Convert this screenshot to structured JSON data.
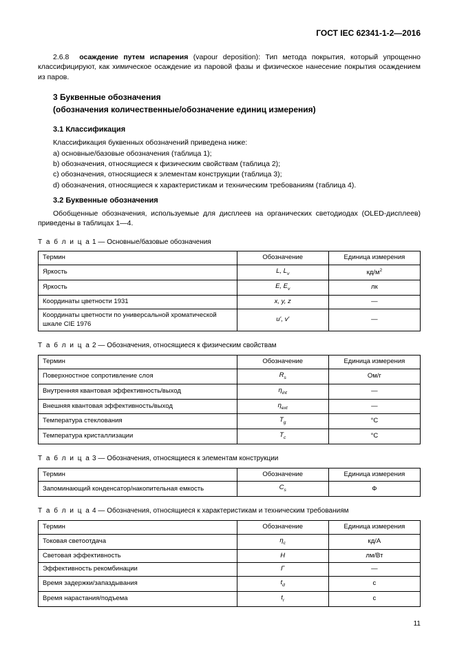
{
  "header": "ГОСТ IEC 62341-1-2—2016",
  "p268_num": "2.6.8",
  "p268_bold": "осаждение путем испарения",
  "p268_paren": "(vapour deposition):",
  "p268_rest": " Тип метода покрытия, который упрощенно классифицируют, как химическое осаждение из паровой фазы и физическое нанесение покрытия осаждением из паров.",
  "sec3_line1": "3  Буквенные обозначения",
  "sec3_line2": "(обозначения количественные/обозначение единиц измерения)",
  "h31": "3.1  Классификация",
  "p31": "Классификация буквенных обозначений приведена ниже:",
  "list": {
    "a": "a)  основные/базовые обозначения (таблица 1);",
    "b": "b)  обозначения, относящиеся к физическим свойствам (таблица 2);",
    "c": "c)  обозначения, относящиеся к элементам конструкции (таблица 3);",
    "d": "d)  обозначения, относящиеся к характеристикам и техническим требованиям (таблица 4)."
  },
  "h32": "3.2  Буквенные обозначения",
  "p32": "Обобщенные обозначения, используемые для дисплеев на органических светодиодах (OLED-дисплеев) приведены в таблицах 1—4.",
  "tbl_word": "Т а б л и ц а",
  "col_term": "Термин",
  "col_sym": "Обозначение",
  "col_unit": "Единица измерения",
  "t1": {
    "num": "  1 — ",
    "cap": "Основные/базовые обозначения",
    "rows": [
      {
        "t": "Яркость",
        "s": "L, L<sub>v</sub>",
        "u": "кд/м<sup>2</sup>"
      },
      {
        "t": "Яркость",
        "s": "E, E<sub>v</sub>",
        "u": "лк"
      },
      {
        "t": "Координаты цветности 1931",
        "s": "x, y, z",
        "u": "—"
      },
      {
        "t": "Координаты цветности по универсальной хроматической шкале CIE 1976",
        "s": "u′, v′",
        "u": "—"
      }
    ]
  },
  "t2": {
    "num": "  2 — ",
    "cap": "Обозначения, относящиеся к физическим свойствам",
    "rows": [
      {
        "t": "Поверхностное сопротивление слоя",
        "s": "R<sub>s</sub>",
        "u": "Ом/г"
      },
      {
        "t": "Внутренняя квантовая эффективность/выход",
        "s": "η<sub>int</sub>",
        "u": "—"
      },
      {
        "t": "Внешняя квантовая эффективность/выход",
        "s": "η<sub>ext</sub>",
        "u": "—"
      },
      {
        "t": "Температура стеклования",
        "s": "T<sub>g</sub>",
        "u": "°C"
      },
      {
        "t": "Температура кристаллизации",
        "s": "T<sub>c</sub>",
        "u": "°C"
      }
    ]
  },
  "t3": {
    "num": "  3 — ",
    "cap": "Обозначения, относящиеся к элементам конструкции",
    "rows": [
      {
        "t": "Запоминающий конденсатор/накопительная емкость",
        "s": "C<sub>s</sub>",
        "u": "Ф"
      }
    ]
  },
  "t4": {
    "num": "  4 — ",
    "cap": "Обозначения, относящиеся к характеристикам и техническим требованиям",
    "rows": [
      {
        "t": "Токовая светоотдача",
        "s": "η<sub>c</sub>",
        "u": "кд/А"
      },
      {
        "t": "Световая эффективность",
        "s": "H",
        "u": "лм/Вт"
      },
      {
        "t": "Эффективность рекомбинации",
        "s": "Γ",
        "u": "—"
      },
      {
        "t": "Время задержки/запаздывания",
        "s": "t<sub>d</sub>",
        "u": "с"
      },
      {
        "t": "Время нарастания/подъема",
        "s": "t<sub>r</sub>",
        "u": "с"
      }
    ]
  },
  "page_num": "11"
}
